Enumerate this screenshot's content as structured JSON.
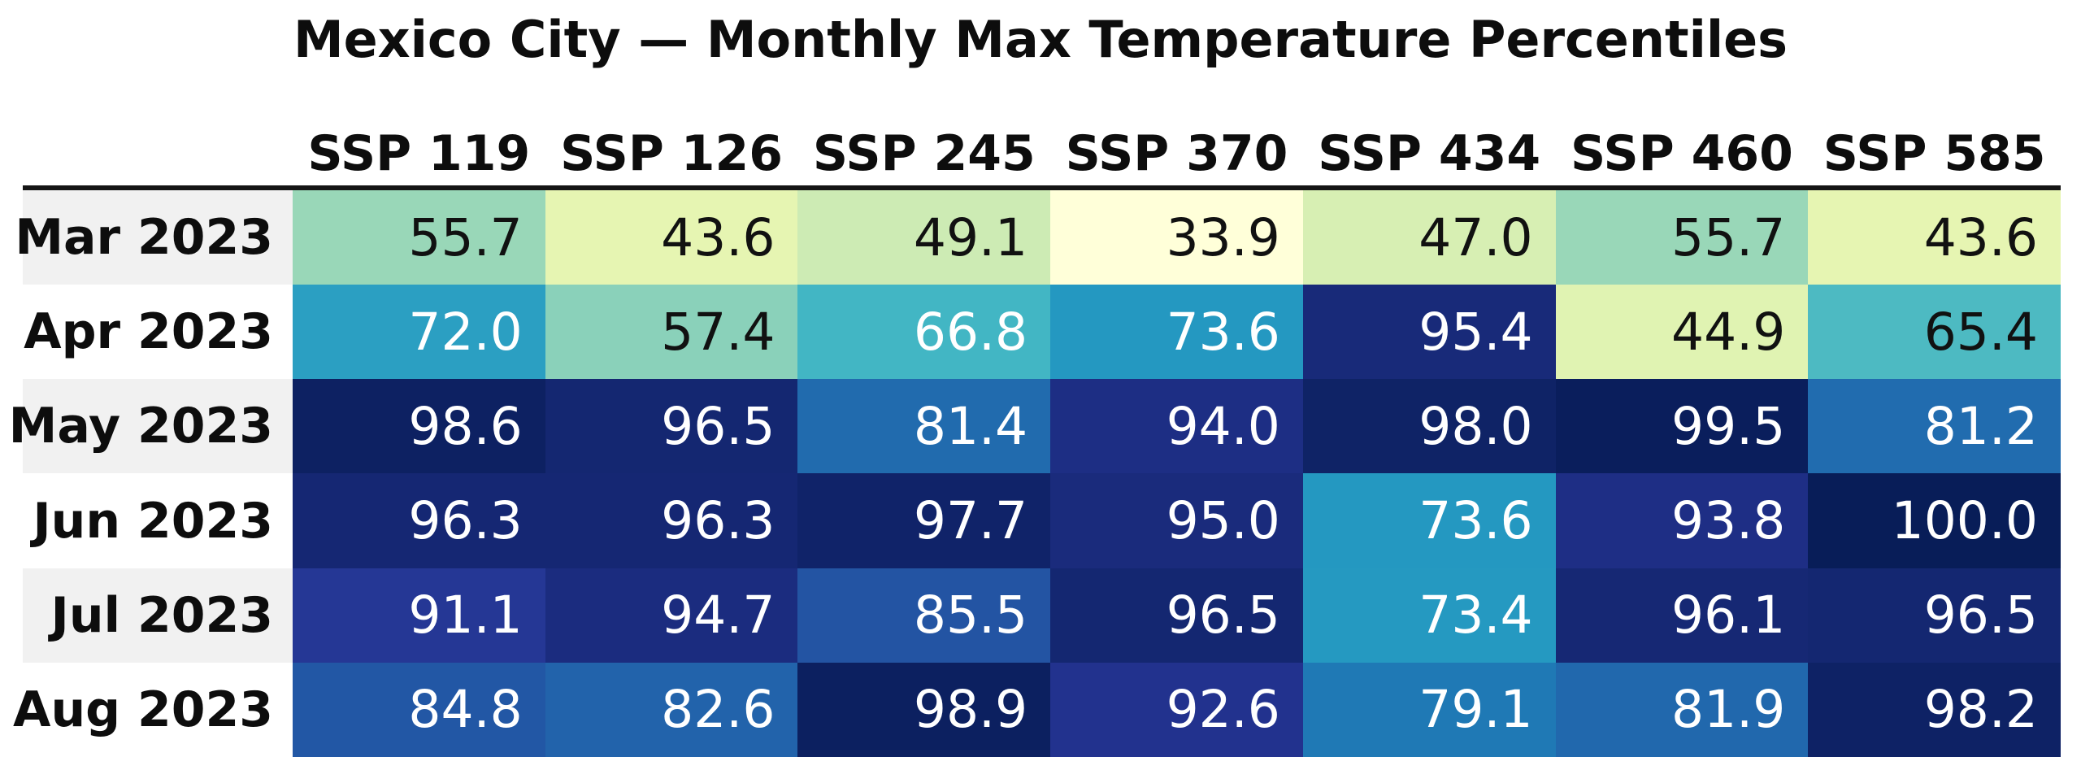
{
  "chart_data": {
    "type": "heatmap",
    "title": "Mexico City — Monthly Max Temperature Percentiles",
    "columns": [
      "SSP 119",
      "SSP 126",
      "SSP 245",
      "SSP 370",
      "SSP 434",
      "SSP 460",
      "SSP 585"
    ],
    "row_labels": [
      "Mar 2023",
      "Apr 2023",
      "May 2023",
      "Jun 2023",
      "Jul 2023",
      "Aug 2023"
    ],
    "values": [
      [
        55.7,
        43.6,
        49.1,
        33.9,
        47.0,
        55.7,
        43.6
      ],
      [
        72.0,
        57.4,
        66.8,
        73.6,
        95.4,
        44.9,
        65.4
      ],
      [
        98.6,
        96.5,
        81.4,
        94.0,
        98.0,
        99.5,
        81.2
      ],
      [
        96.3,
        96.3,
        97.7,
        95.0,
        73.6,
        93.8,
        100.0
      ],
      [
        91.1,
        94.7,
        85.5,
        96.5,
        73.4,
        96.1,
        96.5
      ],
      [
        84.8,
        82.6,
        98.9,
        92.6,
        79.1,
        81.9,
        98.2
      ]
    ],
    "colormap": "YlGnBu",
    "vmin": 33.9,
    "vmax": 100.0,
    "legend": "none",
    "grid": false
  },
  "style": {
    "background": "#ffffff",
    "header_rule_color": "#151515",
    "label_stripe_gray": "#f1f1f1",
    "dark_text": "#111111",
    "light_text": "#ffffff"
  },
  "rows": [
    {
      "label": "Mar 2023",
      "label_bg": "#f1f1f1",
      "cells": [
        {
          "value": "55.7",
          "bg": "#99d7b8",
          "fg": "#111111"
        },
        {
          "value": "43.6",
          "bg": "#e6f5b2",
          "fg": "#111111"
        },
        {
          "value": "49.1",
          "bg": "#cdebb4",
          "fg": "#111111"
        },
        {
          "value": "33.9",
          "bg": "#ffffd9",
          "fg": "#111111"
        },
        {
          "value": "47.0",
          "bg": "#d7efb3",
          "fg": "#111111"
        },
        {
          "value": "55.7",
          "bg": "#99d7b8",
          "fg": "#111111"
        },
        {
          "value": "43.6",
          "bg": "#e6f5b2",
          "fg": "#111111"
        }
      ]
    },
    {
      "label": "Apr 2023",
      "label_bg": "#ffffff",
      "cells": [
        {
          "value": "72.0",
          "bg": "#2b9fc2",
          "fg": "#ffffff"
        },
        {
          "value": "57.4",
          "bg": "#8ad1ba",
          "fg": "#111111"
        },
        {
          "value": "66.8",
          "bg": "#42b6c4",
          "fg": "#ffffff"
        },
        {
          "value": "73.6",
          "bg": "#2498c1",
          "fg": "#ffffff"
        },
        {
          "value": "95.4",
          "bg": "#182a79",
          "fg": "#ffffff"
        },
        {
          "value": "44.9",
          "bg": "#e0f3b2",
          "fg": "#111111"
        },
        {
          "value": "65.4",
          "bg": "#4dbac2",
          "fg": "#111111"
        }
      ]
    },
    {
      "label": "May 2023",
      "label_bg": "#f1f1f1",
      "cells": [
        {
          "value": "98.6",
          "bg": "#0d2162",
          "fg": "#ffffff"
        },
        {
          "value": "96.5",
          "bg": "#142771",
          "fg": "#ffffff"
        },
        {
          "value": "81.4",
          "bg": "#216bae",
          "fg": "#ffffff"
        },
        {
          "value": "94.0",
          "bg": "#1d2e84",
          "fg": "#ffffff"
        },
        {
          "value": "98.0",
          "bg": "#0f2366",
          "fg": "#ffffff"
        },
        {
          "value": "99.5",
          "bg": "#0a1e5c",
          "fg": "#ffffff"
        },
        {
          "value": "81.2",
          "bg": "#216caf",
          "fg": "#ffffff"
        }
      ]
    },
    {
      "label": "Jun 2023",
      "label_bg": "#ffffff",
      "cells": [
        {
          "value": "96.3",
          "bg": "#152773",
          "fg": "#ffffff"
        },
        {
          "value": "96.3",
          "bg": "#152773",
          "fg": "#ffffff"
        },
        {
          "value": "97.7",
          "bg": "#102369",
          "fg": "#ffffff"
        },
        {
          "value": "95.0",
          "bg": "#1a2b7c",
          "fg": "#ffffff"
        },
        {
          "value": "73.6",
          "bg": "#2498c1",
          "fg": "#ffffff"
        },
        {
          "value": "93.8",
          "bg": "#1e2e85",
          "fg": "#ffffff"
        },
        {
          "value": "100.0",
          "bg": "#081d58",
          "fg": "#ffffff"
        }
      ]
    },
    {
      "label": "Jul 2023",
      "label_bg": "#f1f1f1",
      "cells": [
        {
          "value": "91.1",
          "bg": "#253795",
          "fg": "#ffffff"
        },
        {
          "value": "94.7",
          "bg": "#1b2c7f",
          "fg": "#ffffff"
        },
        {
          "value": "85.5",
          "bg": "#2354a3",
          "fg": "#ffffff"
        },
        {
          "value": "96.5",
          "bg": "#142771",
          "fg": "#ffffff"
        },
        {
          "value": "73.4",
          "bg": "#2599c1",
          "fg": "#ffffff"
        },
        {
          "value": "96.1",
          "bg": "#162874",
          "fg": "#ffffff"
        },
        {
          "value": "96.5",
          "bg": "#142771",
          "fg": "#ffffff"
        }
      ]
    },
    {
      "label": "Aug 2023",
      "label_bg": "#ffffff",
      "cells": [
        {
          "value": "84.8",
          "bg": "#2257a5",
          "fg": "#ffffff"
        },
        {
          "value": "82.6",
          "bg": "#2263ab",
          "fg": "#ffffff"
        },
        {
          "value": "98.9",
          "bg": "#0c2060",
          "fg": "#ffffff"
        },
        {
          "value": "92.6",
          "bg": "#22328e",
          "fg": "#ffffff"
        },
        {
          "value": "79.1",
          "bg": "#1f79b5",
          "fg": "#ffffff"
        },
        {
          "value": "81.9",
          "bg": "#2168ad",
          "fg": "#ffffff"
        },
        {
          "value": "98.2",
          "bg": "#0e2265",
          "fg": "#ffffff"
        }
      ]
    }
  ]
}
